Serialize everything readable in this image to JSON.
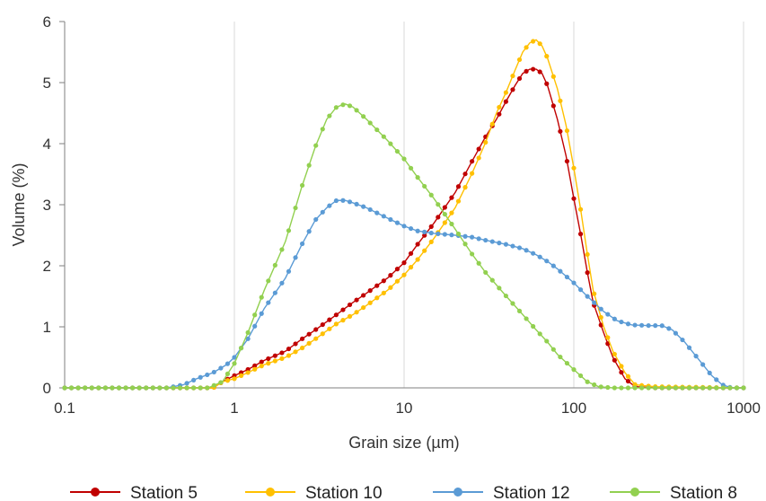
{
  "chart_data": {
    "type": "line",
    "xlabel": "Grain size (µm)",
    "ylabel": "Volume (%)",
    "x_scale": "log",
    "xlim": [
      0.1,
      1000
    ],
    "ylim": [
      0,
      6
    ],
    "x_ticks": [
      "0.1",
      "1",
      "10",
      "100",
      "1000"
    ],
    "y_ticks": [
      "0",
      "1",
      "2",
      "3",
      "4",
      "5",
      "6"
    ],
    "grid": "vertical",
    "legend_position": "bottom",
    "series": [
      {
        "name": "Station 5",
        "color": "#c00000",
        "points": [
          [
            0.1,
            0
          ],
          [
            0.5,
            0
          ],
          [
            0.75,
            0
          ],
          [
            0.85,
            0.1
          ],
          [
            1.0,
            0.2
          ],
          [
            1.2,
            0.3
          ],
          [
            1.5,
            0.45
          ],
          [
            2,
            0.6
          ],
          [
            2.5,
            0.8
          ],
          [
            3,
            0.95
          ],
          [
            4,
            1.2
          ],
          [
            5,
            1.4
          ],
          [
            6,
            1.55
          ],
          [
            8,
            1.8
          ],
          [
            10,
            2.05
          ],
          [
            12,
            2.35
          ],
          [
            15,
            2.7
          ],
          [
            20,
            3.2
          ],
          [
            25,
            3.7
          ],
          [
            30,
            4.1
          ],
          [
            35,
            4.4
          ],
          [
            40,
            4.7
          ],
          [
            45,
            4.95
          ],
          [
            50,
            5.15
          ],
          [
            55,
            5.22
          ],
          [
            60,
            5.22
          ],
          [
            65,
            5.15
          ],
          [
            70,
            4.95
          ],
          [
            80,
            4.4
          ],
          [
            90,
            3.8
          ],
          [
            100,
            3.1
          ],
          [
            110,
            2.5
          ],
          [
            120,
            1.9
          ],
          [
            130,
            1.4
          ],
          [
            150,
            0.9
          ],
          [
            170,
            0.5
          ],
          [
            200,
            0.15
          ],
          [
            230,
            0.02
          ],
          [
            300,
            0
          ],
          [
            1000,
            0
          ]
        ]
      },
      {
        "name": "Station 10",
        "color": "#ffc000",
        "points": [
          [
            0.1,
            0
          ],
          [
            0.5,
            0
          ],
          [
            0.75,
            0
          ],
          [
            0.85,
            0.1
          ],
          [
            1.0,
            0.15
          ],
          [
            1.2,
            0.25
          ],
          [
            1.5,
            0.38
          ],
          [
            2,
            0.5
          ],
          [
            2.5,
            0.65
          ],
          [
            3,
            0.8
          ],
          [
            4,
            1.05
          ],
          [
            5,
            1.2
          ],
          [
            6,
            1.35
          ],
          [
            8,
            1.6
          ],
          [
            10,
            1.85
          ],
          [
            12,
            2.1
          ],
          [
            15,
            2.45
          ],
          [
            20,
            2.95
          ],
          [
            25,
            3.5
          ],
          [
            30,
            4.0
          ],
          [
            35,
            4.5
          ],
          [
            40,
            4.85
          ],
          [
            45,
            5.2
          ],
          [
            50,
            5.5
          ],
          [
            55,
            5.65
          ],
          [
            60,
            5.7
          ],
          [
            65,
            5.6
          ],
          [
            70,
            5.4
          ],
          [
            80,
            4.9
          ],
          [
            90,
            4.3
          ],
          [
            100,
            3.6
          ],
          [
            110,
            2.9
          ],
          [
            120,
            2.2
          ],
          [
            130,
            1.6
          ],
          [
            150,
            1.0
          ],
          [
            170,
            0.6
          ],
          [
            200,
            0.25
          ],
          [
            230,
            0.05
          ],
          [
            300,
            0.02
          ],
          [
            1000,
            0
          ]
        ]
      },
      {
        "name": "Station 12",
        "color": "#5b9bd5",
        "points": [
          [
            0.1,
            0
          ],
          [
            0.4,
            0
          ],
          [
            0.5,
            0.05
          ],
          [
            0.6,
            0.15
          ],
          [
            0.75,
            0.25
          ],
          [
            0.9,
            0.38
          ],
          [
            1.0,
            0.5
          ],
          [
            1.2,
            0.8
          ],
          [
            1.5,
            1.3
          ],
          [
            2,
            1.8
          ],
          [
            2.5,
            2.35
          ],
          [
            3,
            2.75
          ],
          [
            3.5,
            2.95
          ],
          [
            4,
            3.07
          ],
          [
            4.5,
            3.07
          ],
          [
            5,
            3.03
          ],
          [
            6,
            2.95
          ],
          [
            8,
            2.78
          ],
          [
            10,
            2.65
          ],
          [
            12,
            2.57
          ],
          [
            15,
            2.53
          ],
          [
            20,
            2.5
          ],
          [
            25,
            2.47
          ],
          [
            30,
            2.42
          ],
          [
            40,
            2.35
          ],
          [
            50,
            2.28
          ],
          [
            60,
            2.18
          ],
          [
            70,
            2.07
          ],
          [
            80,
            1.95
          ],
          [
            100,
            1.72
          ],
          [
            120,
            1.5
          ],
          [
            150,
            1.25
          ],
          [
            180,
            1.1
          ],
          [
            220,
            1.03
          ],
          [
            280,
            1.02
          ],
          [
            330,
            1.02
          ],
          [
            380,
            0.95
          ],
          [
            450,
            0.75
          ],
          [
            550,
            0.45
          ],
          [
            650,
            0.2
          ],
          [
            750,
            0.05
          ],
          [
            850,
            0
          ],
          [
            1000,
            0
          ]
        ]
      },
      {
        "name": "Station 8",
        "color": "#92d050",
        "points": [
          [
            0.1,
            0
          ],
          [
            0.5,
            0
          ],
          [
            0.7,
            0
          ],
          [
            0.85,
            0.1
          ],
          [
            1.0,
            0.4
          ],
          [
            1.2,
            0.9
          ],
          [
            1.5,
            1.6
          ],
          [
            2,
            2.4
          ],
          [
            2.5,
            3.3
          ],
          [
            3,
            3.95
          ],
          [
            3.5,
            4.4
          ],
          [
            4,
            4.6
          ],
          [
            4.5,
            4.65
          ],
          [
            5,
            4.6
          ],
          [
            6,
            4.4
          ],
          [
            8,
            4.05
          ],
          [
            10,
            3.75
          ],
          [
            12,
            3.45
          ],
          [
            15,
            3.1
          ],
          [
            20,
            2.6
          ],
          [
            25,
            2.2
          ],
          [
            30,
            1.9
          ],
          [
            40,
            1.5
          ],
          [
            50,
            1.2
          ],
          [
            60,
            0.95
          ],
          [
            70,
            0.75
          ],
          [
            80,
            0.55
          ],
          [
            100,
            0.3
          ],
          [
            120,
            0.1
          ],
          [
            140,
            0.02
          ],
          [
            170,
            0
          ],
          [
            1000,
            0
          ]
        ]
      }
    ]
  }
}
